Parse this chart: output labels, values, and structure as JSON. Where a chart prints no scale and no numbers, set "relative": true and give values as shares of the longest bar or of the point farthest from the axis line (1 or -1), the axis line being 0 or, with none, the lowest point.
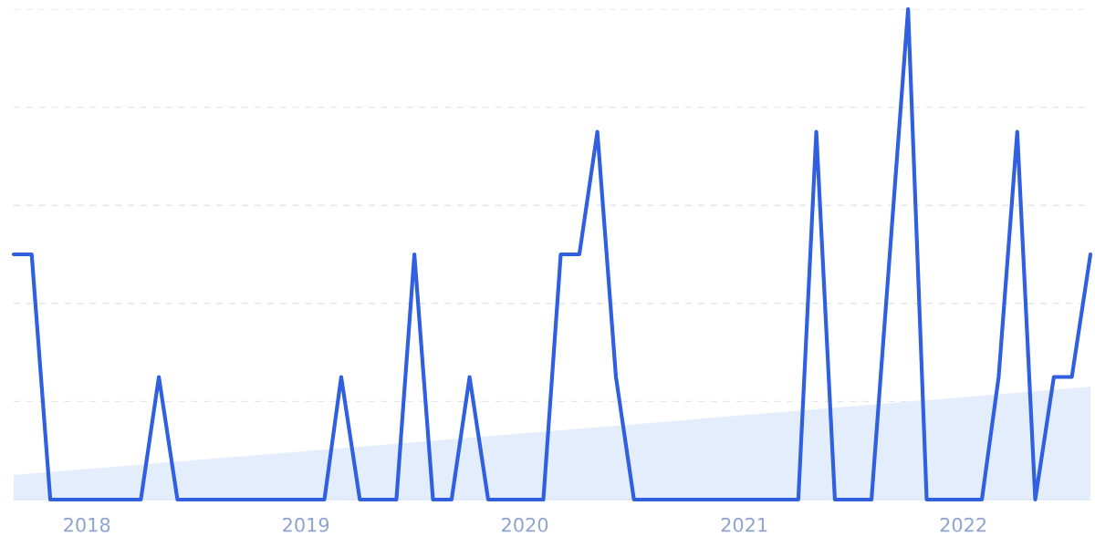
{
  "chart_data": {
    "type": "line",
    "relative": true,
    "grid": "y",
    "line_style": "solid",
    "marker": "none",
    "legend": false,
    "xlim": [
      "2017-09",
      "2022-08"
    ],
    "xticks": [
      {
        "value": "2018",
        "label": "2018"
      },
      {
        "value": "2019",
        "label": "2019"
      },
      {
        "value": "2020",
        "label": "2020"
      },
      {
        "value": "2021",
        "label": "2021"
      },
      {
        "value": "2022",
        "label": "2022"
      }
    ],
    "series": [
      {
        "type": "area",
        "color": "#e3edfb",
        "x": [
          "2017-09",
          "2022-08"
        ],
        "values": [
          0.05,
          0.23
        ]
      },
      {
        "color": "#3060e0",
        "x": [
          "2017-09",
          "2017-10",
          "2017-11",
          "2018-04",
          "2018-05",
          "2018-06",
          "2019-02",
          "2019-03",
          "2019-04",
          "2019-06",
          "2019-07",
          "2019-08",
          "2019-09",
          "2019-10",
          "2019-11",
          "2020-02",
          "2020-03",
          "2020-04",
          "2020-05",
          "2020-06",
          "2020-07",
          "2021-04",
          "2021-05",
          "2021-06",
          "2021-08",
          "2021-10",
          "2021-11",
          "2022-02",
          "2022-03",
          "2022-04",
          "2022-05",
          "2022-06",
          "2022-07",
          "2022-08"
        ],
        "values": [
          0.5,
          0.5,
          0,
          0,
          0.25,
          0,
          0,
          0.25,
          0,
          0,
          0.5,
          0,
          0,
          0.25,
          0,
          0,
          0.5,
          0.5,
          0.75,
          0.25,
          0,
          0,
          0.75,
          0,
          0,
          1,
          0,
          0,
          0.25,
          0.75,
          0,
          0.25,
          0.25,
          0.5
        ]
      }
    ]
  }
}
